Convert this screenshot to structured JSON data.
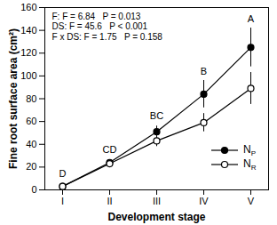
{
  "chart_data": {
    "type": "line",
    "x_label": "Development stage",
    "y_label": "Fine root surface area (cm²)",
    "categories": [
      "I",
      "II",
      "III",
      "IV",
      "V"
    ],
    "series": [
      {
        "name": "NP",
        "color": "#000000",
        "marker": "circle-filled",
        "line_style": "solid",
        "values": [
          3,
          24,
          51,
          84,
          125
        ],
        "errors": [
          1,
          2,
          5,
          12,
          17
        ]
      },
      {
        "name": "NR",
        "color": "#000000",
        "marker": "circle-open",
        "line_style": "solid",
        "values": [
          3,
          23,
          43,
          59,
          89
        ],
        "errors": [
          1,
          2,
          5,
          8,
          14
        ]
      }
    ],
    "ylim": [
      0,
      160
    ],
    "yticks": [
      0,
      20,
      40,
      60,
      80,
      100,
      120,
      140,
      160
    ],
    "legend": "lower right",
    "grid": false,
    "annotations": [
      "F: F = 6.84   P = 0.013",
      "DS: F = 45.6   P < 0.001",
      "F x DS: F = 1.75   P = 0.158"
    ],
    "group_letters": [
      {
        "category": "I",
        "text": "D",
        "y": 14
      },
      {
        "category": "II",
        "text": "CD",
        "y": 35
      },
      {
        "category": "III",
        "text": "BC",
        "y": 65
      },
      {
        "category": "IV",
        "text": "B",
        "y": 104
      },
      {
        "category": "V",
        "text": "A",
        "y": 150
      }
    ]
  }
}
